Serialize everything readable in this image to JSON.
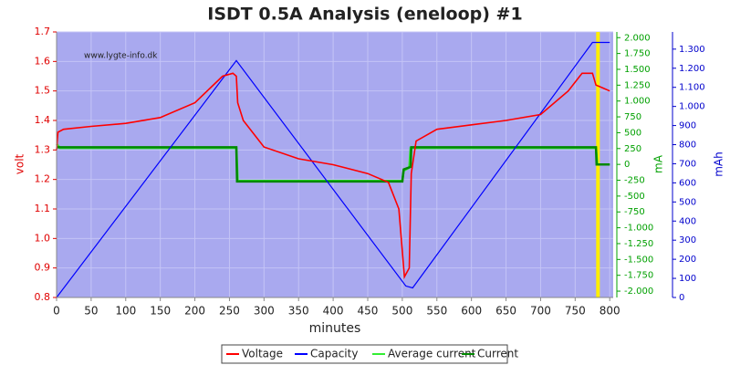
{
  "chart_data": {
    "type": "line",
    "title": "ISDT 0.5A Analysis (eneloop)  #1",
    "watermark": "www.lygte-info.dk",
    "xlabel": "minutes",
    "ylabel": "volt",
    "y2label": "mA",
    "y3label": "mAh",
    "xlim": [
      0,
      805
    ],
    "xticks": [
      0,
      50,
      100,
      150,
      200,
      250,
      300,
      350,
      400,
      450,
      500,
      550,
      600,
      650,
      700,
      750,
      800
    ],
    "ylim": [
      0.8,
      1.7
    ],
    "yticks": [
      0.8,
      0.9,
      {
        "value": 1,
        "label": "1.0"
      },
      1.1,
      1.2,
      1.3,
      1.4,
      1.5,
      1.6,
      1.7
    ],
    "y2lim": [
      -2100,
      2090
    ],
    "y2ticks": [
      {
        "value": 2000,
        "label": "2.000"
      },
      {
        "value": 1750,
        "label": "1.750"
      },
      {
        "value": 1500,
        "label": "1.500"
      },
      {
        "value": 1250,
        "label": "1.250"
      },
      {
        "value": 1000,
        "label": "1.000"
      },
      750,
      500,
      250,
      0,
      -250,
      -500,
      -750,
      {
        "value": -1000,
        "label": "-1.000"
      },
      {
        "value": -1250,
        "label": "-1.250"
      },
      {
        "value": -1500,
        "label": "-1.500"
      },
      {
        "value": -1750,
        "label": "-1.750"
      },
      {
        "value": -2000,
        "label": "-2.000"
      }
    ],
    "y3lim": [
      0,
      1390
    ],
    "y3ticks": [
      0,
      100,
      200,
      300,
      400,
      500,
      600,
      700,
      800,
      900,
      {
        "value": 1000,
        "label": "1.000"
      },
      {
        "value": 1100,
        "label": "1.100"
      },
      {
        "value": 1200,
        "label": "1.200"
      },
      {
        "value": 1300,
        "label": "1.300"
      }
    ],
    "grid": true,
    "vline": {
      "x": 783,
      "color": "#ffee00"
    },
    "series": [
      {
        "name": "Voltage",
        "color": "#ff0000",
        "axis": "y",
        "x": [
          0,
          2,
          10,
          50,
          100,
          150,
          200,
          240,
          255,
          260,
          262,
          270,
          300,
          350,
          400,
          450,
          480,
          495,
          503,
          510,
          513,
          520,
          550,
          600,
          650,
          700,
          740,
          760,
          775,
          780,
          790,
          800
        ],
        "values": [
          1.3,
          1.36,
          1.37,
          1.38,
          1.39,
          1.41,
          1.46,
          1.55,
          1.56,
          1.55,
          1.46,
          1.4,
          1.31,
          1.27,
          1.25,
          1.22,
          1.19,
          1.1,
          0.87,
          0.9,
          1.22,
          1.33,
          1.37,
          1.385,
          1.4,
          1.42,
          1.5,
          1.56,
          1.56,
          1.52,
          1.51,
          1.5
        ]
      },
      {
        "name": "Capacity",
        "color": "#0000ff",
        "axis": "y3",
        "x": [
          0,
          260,
          505,
          515,
          775,
          800
        ],
        "values": [
          0,
          1240,
          60,
          50,
          1335,
          1335
        ]
      },
      {
        "name": "Average current",
        "color": "#33ee33",
        "axis": "y2",
        "x": [
          0,
          5,
          260,
          262,
          500,
          502,
          510,
          512,
          780,
          782,
          800
        ],
        "values": [
          320,
          260,
          260,
          -260,
          -260,
          -100,
          -50,
          260,
          260,
          0,
          0
        ]
      },
      {
        "name": "Current",
        "color": "#008800",
        "axis": "y2",
        "x": [
          0,
          260,
          261,
          500,
          502,
          512,
          513,
          780,
          781,
          800
        ],
        "values": [
          270,
          270,
          -270,
          -270,
          -80,
          -40,
          270,
          270,
          0,
          0
        ]
      }
    ]
  }
}
